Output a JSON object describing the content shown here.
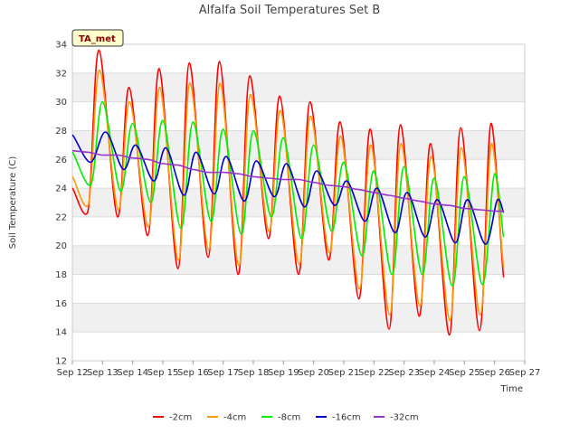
{
  "chart_data": {
    "type": "line",
    "title": "Alfalfa Soil Temperatures Set B",
    "xlabel": "Time",
    "ylabel": "Soil Temperature (C)",
    "badge": "TA_met",
    "xlim": [
      12,
      27
    ],
    "ylim": [
      12,
      34
    ],
    "x_ticks": [
      12,
      13,
      14,
      15,
      16,
      17,
      18,
      19,
      20,
      21,
      22,
      23,
      24,
      25,
      26,
      27
    ],
    "x_tick_labels": [
      "Sep 12",
      "Sep 13",
      "Sep 14",
      "Sep 15",
      "Sep 16",
      "Sep 17",
      "Sep 18",
      "Sep 19",
      "Sep 20",
      "Sep 21",
      "Sep 22",
      "Sep 23",
      "Sep 24",
      "Sep 25",
      "Sep 26",
      "Sep 27"
    ],
    "y_ticks": [
      12,
      14,
      16,
      18,
      20,
      22,
      24,
      26,
      28,
      30,
      32,
      34
    ],
    "grid": true,
    "legend_position": "bottom",
    "series": [
      {
        "name": "-2cm",
        "color": "#ff0000",
        "x": [
          12.0,
          12.5,
          12.88,
          13.5,
          13.88,
          14.5,
          14.88,
          15.5,
          15.88,
          16.5,
          16.88,
          17.5,
          17.88,
          18.5,
          18.88,
          19.5,
          19.88,
          20.5,
          20.88,
          21.5,
          21.88,
          22.5,
          22.88,
          23.5,
          23.88,
          24.5,
          24.88,
          25.5,
          25.88,
          26.3
        ],
        "y": [
          24.0,
          22.3,
          33.6,
          22.0,
          31.0,
          20.7,
          32.3,
          18.4,
          32.7,
          19.2,
          32.8,
          18.0,
          31.8,
          20.5,
          30.4,
          18.0,
          30.0,
          19.0,
          28.6,
          16.3,
          28.1,
          14.2,
          28.4,
          15.1,
          27.1,
          13.8,
          28.2,
          14.1,
          28.5,
          17.8
        ]
      },
      {
        "name": "-4cm",
        "color": "#ff9900",
        "x": [
          12.0,
          12.52,
          12.9,
          13.52,
          13.9,
          14.52,
          14.9,
          15.52,
          15.9,
          16.52,
          16.9,
          17.52,
          17.9,
          18.52,
          18.9,
          19.52,
          19.9,
          20.52,
          20.9,
          21.52,
          21.9,
          22.52,
          22.9,
          23.52,
          23.9,
          24.52,
          24.9,
          25.52,
          25.9,
          26.3
        ],
        "y": [
          24.8,
          22.8,
          32.2,
          22.5,
          30.0,
          21.3,
          31.0,
          19.0,
          31.3,
          19.7,
          31.3,
          18.6,
          30.5,
          21.0,
          29.4,
          18.7,
          29.0,
          19.5,
          27.6,
          17.0,
          27.0,
          15.2,
          27.1,
          15.8,
          26.2,
          14.8,
          26.8,
          15.2,
          27.1,
          18.5
        ]
      },
      {
        "name": "-8cm",
        "color": "#00ee00",
        "x": [
          12.0,
          12.6,
          13.0,
          13.6,
          14.0,
          14.6,
          15.0,
          15.6,
          16.0,
          16.6,
          17.0,
          17.6,
          18.0,
          18.6,
          19.0,
          19.6,
          20.0,
          20.6,
          21.0,
          21.6,
          22.0,
          22.6,
          23.0,
          23.6,
          24.0,
          24.6,
          25.0,
          25.6,
          26.0,
          26.3
        ],
        "y": [
          26.5,
          24.2,
          30.0,
          23.8,
          28.5,
          23.0,
          28.7,
          21.2,
          28.6,
          21.7,
          28.1,
          20.8,
          28.0,
          22.0,
          27.5,
          20.5,
          27.0,
          21.0,
          25.8,
          19.3,
          25.2,
          18.0,
          25.5,
          18.0,
          24.7,
          17.2,
          24.8,
          17.3,
          25.0,
          20.6
        ]
      },
      {
        "name": "-16cm",
        "color": "#0000cc",
        "x": [
          12.0,
          12.6,
          13.1,
          13.7,
          14.1,
          14.7,
          15.1,
          15.7,
          16.1,
          16.7,
          17.1,
          17.7,
          18.1,
          18.7,
          19.1,
          19.7,
          20.1,
          20.7,
          21.1,
          21.7,
          22.1,
          22.7,
          23.1,
          23.7,
          24.1,
          24.7,
          25.1,
          25.7,
          26.1,
          26.3
        ],
        "y": [
          27.7,
          25.8,
          27.9,
          25.3,
          27.0,
          24.5,
          26.8,
          23.5,
          26.5,
          23.6,
          26.2,
          23.1,
          25.9,
          23.4,
          25.7,
          22.7,
          25.2,
          22.8,
          24.5,
          21.7,
          24.0,
          20.9,
          23.7,
          20.6,
          23.2,
          20.2,
          23.2,
          20.1,
          23.2,
          22.3
        ]
      },
      {
        "name": "-32cm",
        "color": "#9933cc",
        "x": [
          12.0,
          12.5,
          13.0,
          13.5,
          14.0,
          14.5,
          15.0,
          15.5,
          16.0,
          16.5,
          17.0,
          17.5,
          18.0,
          18.5,
          19.0,
          19.5,
          20.0,
          20.5,
          21.0,
          21.5,
          22.0,
          22.5,
          23.0,
          23.5,
          24.0,
          24.5,
          25.0,
          25.5,
          26.0,
          26.3
        ],
        "y": [
          26.6,
          26.5,
          26.3,
          26.3,
          26.1,
          26.0,
          25.7,
          25.6,
          25.3,
          25.1,
          25.1,
          25.0,
          24.8,
          24.7,
          24.6,
          24.6,
          24.4,
          24.2,
          24.1,
          23.9,
          23.7,
          23.5,
          23.3,
          23.1,
          22.9,
          22.8,
          22.6,
          22.5,
          22.4,
          22.4
        ]
      }
    ]
  }
}
